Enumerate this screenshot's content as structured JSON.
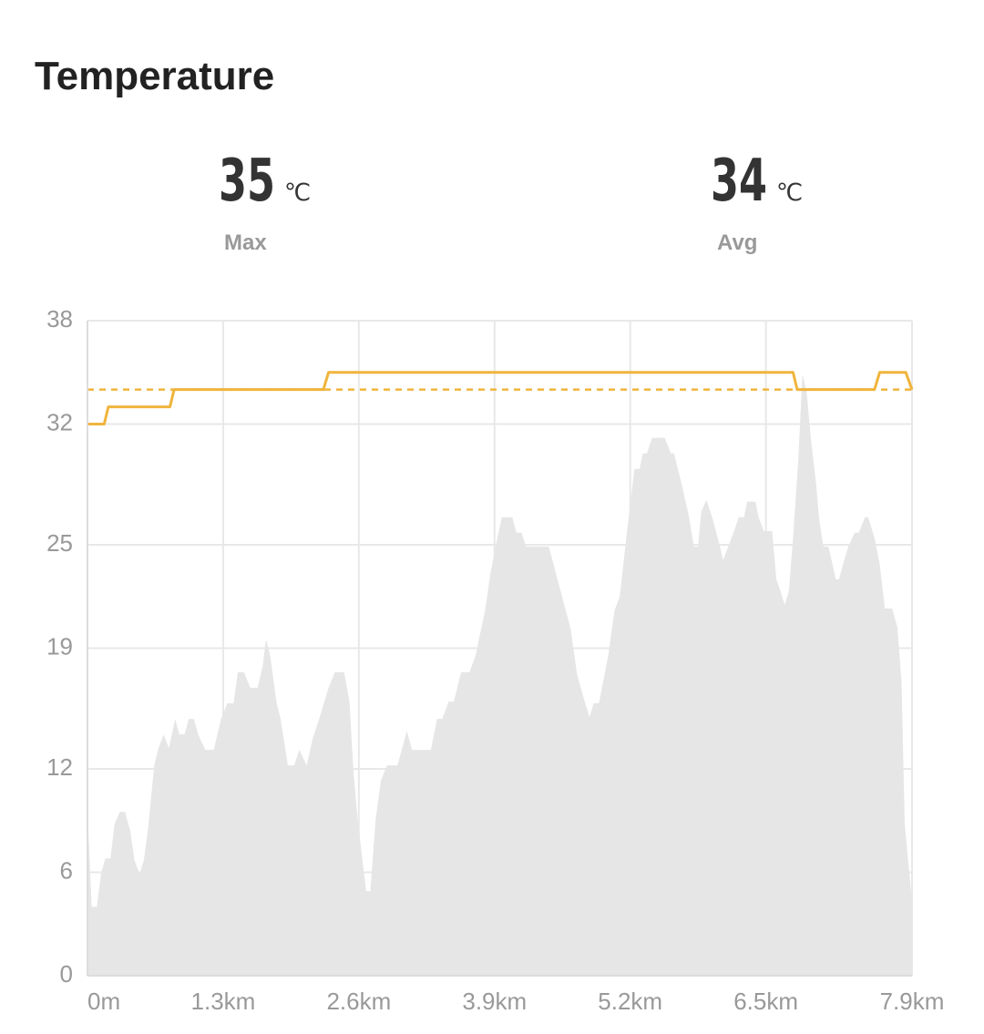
{
  "header": {
    "title": "Temperature"
  },
  "stats": [
    {
      "value": 35,
      "unit": "℃",
      "label": "Max"
    },
    {
      "value": 34,
      "unit": "℃",
      "label": "Avg"
    }
  ],
  "chart_data": {
    "type": "area-line",
    "ylim": [
      0,
      38
    ],
    "yticks": [
      0,
      6,
      12,
      19,
      25,
      32,
      38
    ],
    "xlim": [
      0,
      7.9
    ],
    "xticks": [
      {
        "value": 0,
        "label": "0m"
      },
      {
        "value": 1.3,
        "label": "1.3km"
      },
      {
        "value": 2.6,
        "label": "2.6km"
      },
      {
        "value": 3.9,
        "label": "3.9km"
      },
      {
        "value": 5.2,
        "label": "5.2km"
      },
      {
        "value": 6.5,
        "label": "6.5km"
      },
      {
        "value": 7.9,
        "label": "7.9km"
      }
    ],
    "grid": true,
    "area": {
      "color": "#e6e6e6",
      "x": [
        0,
        0.04,
        0.09,
        0.13,
        0.17,
        0.22,
        0.26,
        0.31,
        0.36,
        0.41,
        0.45,
        0.5,
        0.54,
        0.58,
        0.64,
        0.68,
        0.73,
        0.78,
        0.84,
        0.88,
        0.93,
        0.97,
        1.02,
        1.06,
        1.13,
        1.21,
        1.28,
        1.34,
        1.4,
        1.44,
        1.5,
        1.56,
        1.63,
        1.68,
        1.71,
        1.75,
        1.81,
        1.85,
        1.92,
        1.98,
        2.03,
        2.1,
        2.16,
        2.22,
        2.27,
        2.31,
        2.37,
        2.46,
        2.51,
        2.55,
        2.59,
        2.64,
        2.67,
        2.71,
        2.76,
        2.81,
        2.87,
        2.97,
        3.02,
        3.06,
        3.11,
        3.29,
        3.35,
        3.4,
        3.46,
        3.51,
        3.58,
        3.66,
        3.72,
        3.75,
        3.81,
        3.86,
        3.92,
        3.97,
        4.07,
        4.11,
        4.16,
        4.2,
        4.42,
        4.49,
        4.56,
        4.63,
        4.69,
        4.75,
        4.81,
        4.85,
        4.9,
        4.93,
        4.99,
        5.05,
        5.1,
        5.17,
        5.24,
        5.29,
        5.32,
        5.36,
        5.41,
        5.53,
        5.59,
        5.62,
        5.69,
        5.76,
        5.81,
        5.85,
        5.88,
        5.93,
        5.99,
        6.06,
        6.09,
        6.14,
        6.19,
        6.24,
        6.29,
        6.32,
        6.4,
        6.43,
        6.48,
        6.56,
        6.6,
        6.64,
        6.68,
        6.72,
        6.76,
        6.81,
        6.85,
        6.89,
        6.93,
        6.98,
        7.01,
        7.05,
        7.1,
        7.17,
        7.2,
        7.25,
        7.29,
        7.35,
        7.39,
        7.45,
        7.48,
        7.54,
        7.59,
        7.64,
        7.71,
        7.76,
        7.8,
        7.83,
        7.9
      ],
      "values": [
        9.6,
        4.0,
        4.0,
        5.9,
        6.8,
        6.8,
        8.8,
        9.5,
        9.5,
        8.4,
        6.7,
        5.9,
        6.7,
        8.5,
        12.2,
        13.2,
        14.0,
        13.2,
        14.9,
        14.0,
        14.0,
        14.9,
        14.9,
        14.0,
        13.1,
        13.1,
        14.9,
        15.8,
        15.8,
        17.6,
        17.6,
        16.7,
        16.7,
        18.0,
        19.5,
        18.6,
        15.9,
        14.9,
        12.2,
        12.2,
        13.1,
        12.2,
        13.8,
        14.9,
        15.9,
        16.7,
        17.6,
        17.6,
        15.9,
        11.7,
        9.0,
        6.4,
        4.9,
        4.9,
        9.0,
        11.3,
        12.2,
        12.2,
        13.3,
        14.2,
        13.1,
        13.1,
        14.9,
        14.9,
        15.9,
        15.9,
        17.6,
        17.6,
        18.6,
        19.5,
        21.2,
        23.3,
        25.2,
        26.6,
        26.6,
        25.7,
        25.7,
        24.9,
        24.9,
        23.3,
        21.7,
        20.1,
        17.5,
        16.2,
        15.0,
        15.8,
        15.8,
        16.7,
        18.6,
        21.2,
        22.0,
        25.8,
        29.4,
        29.4,
        30.3,
        30.3,
        31.2,
        31.2,
        30.3,
        30.3,
        28.6,
        26.7,
        24.9,
        24.9,
        26.9,
        27.6,
        26.5,
        24.9,
        24.1,
        24.9,
        25.7,
        26.6,
        26.6,
        27.5,
        27.5,
        26.6,
        25.8,
        25.8,
        23.0,
        22.3,
        21.5,
        22.3,
        25.4,
        29.9,
        34.9,
        33.9,
        31.2,
        28.6,
        26.5,
        24.9,
        24.9,
        23.0,
        23.0,
        24.1,
        24.9,
        25.7,
        25.7,
        26.6,
        26.6,
        25.4,
        23.9,
        21.3,
        21.3,
        20.2,
        17.0,
        8.8,
        4.3
      ]
    },
    "line": {
      "color": "#f0b43c",
      "x": [
        0,
        0.16,
        0.2,
        0.79,
        0.83,
        2.26,
        2.31,
        6.76,
        6.8,
        7.54,
        7.59,
        7.84,
        7.9
      ],
      "values": [
        32,
        32,
        33,
        33,
        34,
        34,
        35,
        35,
        34,
        34,
        35,
        35,
        34
      ]
    },
    "average_color": "#f0b43c"
  }
}
